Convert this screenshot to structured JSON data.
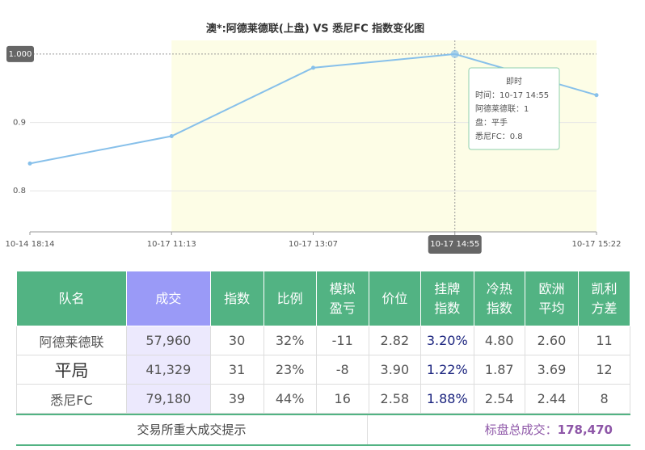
{
  "chart_data": {
    "type": "line",
    "title": "澳*:阿德莱德联(上盘) VS 悉尼FC 指数变化图",
    "categories": [
      "10-14 18:14",
      "10-17 11:13",
      "10-17 13:07",
      "10-17 14:55",
      "10-17 15:22"
    ],
    "values": [
      0.84,
      0.88,
      0.98,
      1.0,
      0.94
    ],
    "color": "#87c0ea",
    "ylim": [
      0.74,
      1.02
    ],
    "yticks": [
      0.8,
      0.9,
      {
        "value": 1.0,
        "label": "1.000"
      }
    ],
    "grid": true,
    "highlight_index": 3,
    "plot_band": {
      "from": 1,
      "to": 4,
      "color": "#fdfde6"
    },
    "tooltip": {
      "title": "即时",
      "lines": [
        "时间：10-17 14:55",
        "阿德莱德联：1",
        "盘：平手",
        "悉尼FC：0.8"
      ]
    }
  },
  "table": {
    "header": [
      [
        "队名"
      ],
      [
        "成交"
      ],
      [
        "指数"
      ],
      [
        "比例"
      ],
      [
        "模拟",
        "盈亏"
      ],
      [
        "价位"
      ],
      [
        "挂牌",
        "指数"
      ],
      [
        "冷热",
        "指数"
      ],
      [
        "欧洲",
        "平均"
      ],
      [
        "凯利",
        "方差"
      ]
    ],
    "rows": [
      [
        "阿德莱德联",
        "57,960",
        "30",
        "32%",
        "-11",
        "2.82",
        "3.20%",
        "4.80",
        "2.60",
        "11"
      ],
      [
        "平局",
        "41,329",
        "31",
        "23%",
        "-8",
        "3.90",
        "1.22%",
        "1.87",
        "3.69",
        "12"
      ],
      [
        "悉尼FC",
        "79,180",
        "39",
        "44%",
        "16",
        "2.58",
        "1.88%",
        "2.54",
        "2.44",
        "8"
      ]
    ]
  },
  "footer": {
    "left": "交易所重大成交提示",
    "total_label": "标盘总成交：",
    "total": "178,470"
  }
}
